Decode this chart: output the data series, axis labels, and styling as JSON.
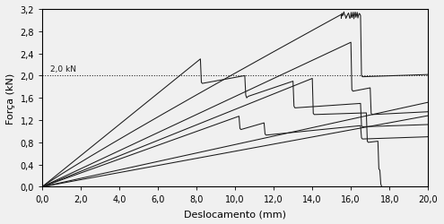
{
  "xlabel": "Deslocamento (mm)",
  "ylabel": "Força (kN)",
  "xlim": [
    0.0,
    20.0
  ],
  "ylim": [
    0.0,
    3.2
  ],
  "xticks": [
    0.0,
    2.0,
    4.0,
    6.0,
    8.0,
    10.0,
    12.0,
    14.0,
    16.0,
    18.0,
    20.0
  ],
  "yticks": [
    0.0,
    0.4,
    0.8,
    1.2,
    1.6,
    2.0,
    2.4,
    2.8,
    3.2
  ],
  "ytick_labels": [
    "0,0",
    "0,4",
    "0,8",
    "1,2",
    "1,6",
    "2,0",
    "2,4",
    "2,8",
    "3,2"
  ],
  "xtick_labels": [
    "0,0",
    "2,0",
    "4,0",
    "6,0",
    "8,0",
    "10,0",
    "12,0",
    "14,0",
    "16,0",
    "18,0",
    "20,0"
  ],
  "ref_line_y": 2.0,
  "ref_line_label": "2,0 kN",
  "line_color": "#1a1a1a",
  "background_color": "#f0f0f0",
  "figsize": [
    4.95,
    2.51
  ],
  "dpi": 100
}
